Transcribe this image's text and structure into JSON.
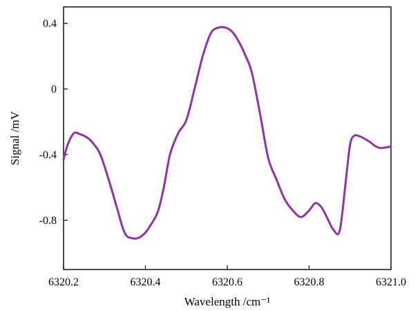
{
  "chart_data": {
    "type": "line",
    "xlabel": "Wavelength /cm⁻¹",
    "ylabel": "Signal /mV",
    "xlim": [
      6320.2,
      6321.0
    ],
    "ylim": [
      -1.1,
      0.5
    ],
    "x_ticks": [
      6320.2,
      6320.4,
      6320.6,
      6320.8,
      6321.0
    ],
    "x_tick_labels": [
      "6320.2",
      "6320.4",
      "6320.6",
      "6320.8",
      "6321.0"
    ],
    "y_ticks": [
      0.4,
      0,
      -0.4,
      -0.8
    ],
    "y_tick_labels": [
      "0.4",
      "0",
      "-0.4",
      "-0.8"
    ],
    "grid": false,
    "series": [
      {
        "color": "#8b35a0",
        "x": [
          6320.2,
          6320.21,
          6320.225,
          6320.24,
          6320.26,
          6320.275,
          6320.29,
          6320.31,
          6320.33,
          6320.35,
          6320.37,
          6320.385,
          6320.4,
          6320.41,
          6320.43,
          6320.445,
          6320.46,
          6320.48,
          6320.5,
          6320.52,
          6320.54,
          6320.56,
          6320.58,
          6320.6,
          6320.615,
          6320.63,
          6320.645,
          6320.66,
          6320.68,
          6320.7,
          6320.72,
          6320.74,
          6320.76,
          6320.78,
          6320.8,
          6320.815,
          6320.83,
          6320.845,
          6320.86,
          6320.875,
          6320.89,
          6320.9,
          6320.91,
          6320.925,
          6320.94,
          6320.95,
          6320.96,
          6320.975,
          6321.0
        ],
        "y": [
          -0.43,
          -0.34,
          -0.27,
          -0.275,
          -0.3,
          -0.34,
          -0.4,
          -0.55,
          -0.72,
          -0.88,
          -0.91,
          -0.905,
          -0.875,
          -0.84,
          -0.75,
          -0.6,
          -0.4,
          -0.27,
          -0.19,
          0.0,
          0.2,
          0.34,
          0.375,
          0.37,
          0.34,
          0.28,
          0.2,
          0.1,
          -0.15,
          -0.42,
          -0.55,
          -0.67,
          -0.74,
          -0.78,
          -0.74,
          -0.695,
          -0.72,
          -0.79,
          -0.86,
          -0.86,
          -0.55,
          -0.34,
          -0.285,
          -0.29,
          -0.31,
          -0.325,
          -0.345,
          -0.36,
          -0.35
        ]
      }
    ]
  }
}
